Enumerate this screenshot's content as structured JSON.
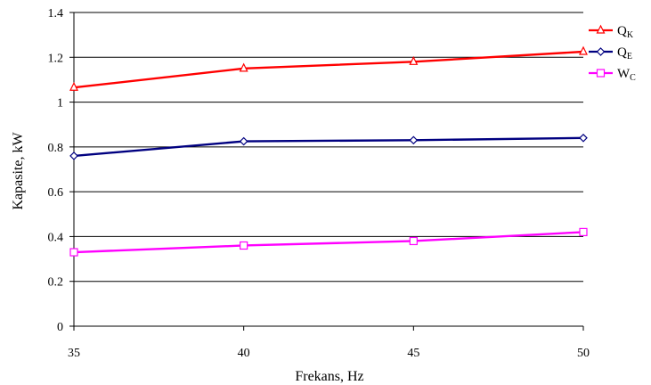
{
  "chart_data": {
    "type": "line",
    "x": [
      35,
      40,
      45,
      50
    ],
    "xlabel": "Frekans, Hz",
    "ylabel": "Kapasite, kW",
    "ylim": [
      0,
      1.4
    ],
    "xticks": [
      "35",
      "40",
      "45",
      "50"
    ],
    "yticks": [
      "0",
      "0.2",
      "0.4",
      "0.6",
      "0.8",
      "1",
      "1.2",
      "1.4"
    ],
    "grid": true,
    "legend_position": "right",
    "series": [
      {
        "name": "Q",
        "sub": "K",
        "values": [
          1.065,
          1.15,
          1.18,
          1.225
        ],
        "color": "#ff0000",
        "marker": "triangle"
      },
      {
        "name": "Q",
        "sub": "E",
        "values": [
          0.76,
          0.825,
          0.83,
          0.84
        ],
        "color": "#000080",
        "marker": "diamond"
      },
      {
        "name": "W",
        "sub": "C",
        "values": [
          0.33,
          0.36,
          0.38,
          0.42
        ],
        "color": "#ff00ff",
        "marker": "square"
      }
    ]
  }
}
